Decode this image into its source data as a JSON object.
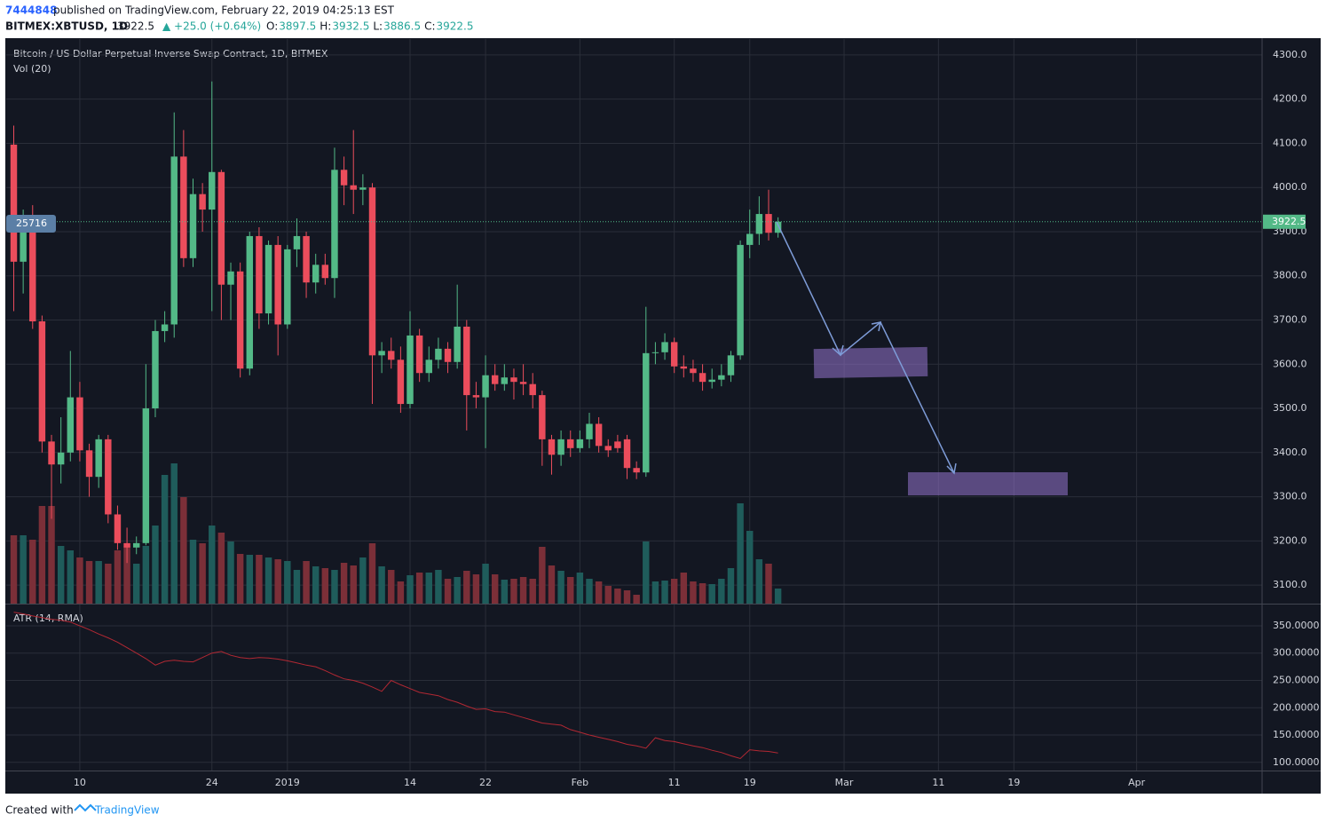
{
  "header": {
    "publisher": "7444848",
    "published": "published on TradingView.com, February 22, 2019 04:25:13 EST",
    "symbol": "BITMEX:XBTUSD, 1D",
    "last": "3922.5",
    "change": "▲ +25.0 (+0.64%)",
    "ohlc": [
      {
        "label": "O:",
        "value": "3897.5"
      },
      {
        "label": "H:",
        "value": "3932.5"
      },
      {
        "label": "L:",
        "value": "3886.5"
      },
      {
        "label": "C:",
        "value": "3922.5"
      }
    ]
  },
  "footer": {
    "created": "Created with",
    "brand": "TradingView"
  },
  "chart_data": [
    {
      "type": "candlestick",
      "title": "Bitcoin / US Dollar Perpetual Inverse Swap Contract, 1D, BITMEX",
      "volume_title": "Vol (20)",
      "volume_label": "25716",
      "last_price_label": "3922.5",
      "up_color": "#53b987",
      "down_color": "#eb4d5c",
      "volume_up_color": "#1f5c5b",
      "volume_down_color": "#7b2f38",
      "grid": true,
      "open": [
        4097,
        3832,
        3925,
        3697,
        3425,
        3373,
        3400,
        3525,
        3405,
        3345,
        3430,
        3260,
        3195,
        3185,
        3195,
        3500,
        3675,
        3690,
        4070,
        3840,
        3985,
        3950,
        4035,
        3780,
        3810,
        3590,
        3890,
        3715,
        3870,
        3690,
        3860,
        3890,
        3785,
        3825,
        3795,
        4040,
        4005,
        3995,
        4000,
        3620,
        3630,
        3610,
        3510,
        3665,
        3580,
        3610,
        3635,
        3605,
        3685,
        3530,
        3525,
        3575,
        3555,
        3570,
        3560,
        3555,
        3530,
        3430,
        3395,
        3430,
        3410,
        3430,
        3465,
        3415,
        3425,
        3430,
        3365,
        3355,
        3625,
        3627,
        3650,
        3595,
        3590,
        3580,
        3560,
        3565,
        3575,
        3620,
        3870,
        3895,
        3940,
        3897.5
      ],
      "high": [
        4140,
        3950,
        3960,
        3710,
        3440,
        3480,
        3630,
        3560,
        3420,
        3440,
        3440,
        3280,
        3230,
        3210,
        3600,
        3700,
        3720,
        4170,
        4130,
        4020,
        4010,
        4240,
        4040,
        3830,
        3830,
        3900,
        3910,
        3880,
        3890,
        3870,
        3930,
        3900,
        3850,
        3850,
        4090,
        4070,
        4130,
        4030,
        4010,
        3650,
        3660,
        3640,
        3720,
        3680,
        3640,
        3660,
        3650,
        3780,
        3700,
        3560,
        3620,
        3600,
        3600,
        3590,
        3600,
        3580,
        3540,
        3440,
        3450,
        3450,
        3450,
        3490,
        3480,
        3430,
        3440,
        3440,
        3380,
        3730,
        3650,
        3670,
        3660,
        3620,
        3610,
        3600,
        3590,
        3600,
        3630,
        3880,
        3950,
        3980,
        3995,
        3932.5
      ],
      "low": [
        3720,
        3760,
        3680,
        3400,
        3250,
        3330,
        3380,
        3380,
        3300,
        3320,
        3240,
        3180,
        3150,
        3170,
        3190,
        3480,
        3650,
        3660,
        3820,
        3820,
        3900,
        3720,
        3700,
        3700,
        3570,
        3575,
        3680,
        3690,
        3620,
        3680,
        3820,
        3750,
        3760,
        3780,
        3750,
        3960,
        3940,
        3960,
        3510,
        3580,
        3590,
        3490,
        3500,
        3560,
        3560,
        3590,
        3580,
        3590,
        3450,
        3500,
        3410,
        3540,
        3540,
        3520,
        3530,
        3500,
        3370,
        3350,
        3370,
        3390,
        3400,
        3410,
        3400,
        3390,
        3400,
        3340,
        3340,
        3345,
        3600,
        3610,
        3580,
        3570,
        3560,
        3540,
        3545,
        3550,
        3560,
        3610,
        3840,
        3870,
        3880,
        3886.5
      ],
      "close": [
        3832,
        3925,
        3697,
        3425,
        3373,
        3400,
        3525,
        3405,
        3345,
        3430,
        3260,
        3195,
        3185,
        3195,
        3500,
        3675,
        3690,
        4070,
        3840,
        3985,
        3950,
        4035,
        3780,
        3810,
        3590,
        3890,
        3715,
        3870,
        3690,
        3860,
        3890,
        3785,
        3825,
        3795,
        4040,
        4005,
        3995,
        4000,
        3620,
        3630,
        3610,
        3510,
        3665,
        3580,
        3610,
        3635,
        3605,
        3685,
        3530,
        3525,
        3575,
        3555,
        3570,
        3560,
        3555,
        3530,
        3430,
        3395,
        3430,
        3410,
        3430,
        3465,
        3415,
        3405,
        3410,
        3365,
        3355,
        3625,
        3627,
        3650,
        3595,
        3590,
        3580,
        3560,
        3565,
        3575,
        3620,
        3870,
        3895,
        3940,
        3897.5,
        3922.5
      ],
      "volume": [
        77,
        77,
        72,
        110,
        110,
        65,
        60,
        52,
        48,
        48,
        45,
        60,
        65,
        45,
        65,
        88,
        145,
        158,
        120,
        72,
        68,
        88,
        80,
        70,
        56,
        55,
        55,
        52,
        50,
        48,
        38,
        48,
        42,
        40,
        38,
        46,
        43,
        52,
        68,
        42,
        38,
        25,
        32,
        35,
        35,
        38,
        28,
        30,
        37,
        33,
        45,
        33,
        27,
        28,
        30,
        28,
        64,
        43,
        37,
        30,
        35,
        28,
        25,
        20,
        17,
        15,
        10,
        70,
        25,
        26,
        28,
        35,
        25,
        23,
        22,
        28,
        40,
        113,
        82,
        50,
        45,
        17
      ],
      "xlim": [
        -0.8,
        132.3
      ],
      "ylim": [
        3058,
        4336
      ],
      "yticks": [
        {
          "value": 3100,
          "label": "3100.0"
        },
        {
          "value": 3200,
          "label": "3200.0"
        },
        {
          "value": 3300,
          "label": "3300.0"
        },
        {
          "value": 3400,
          "label": "3400.0"
        },
        {
          "value": 3500,
          "label": "3500.0"
        },
        {
          "value": 3600,
          "label": "3600.0"
        },
        {
          "value": 3700,
          "label": "3700.0"
        },
        {
          "value": 3800,
          "label": "3800.0"
        },
        {
          "value": 3900,
          "label": "3900.0"
        },
        {
          "value": 4000,
          "label": "4000.0"
        },
        {
          "value": 4100,
          "label": "4100.0"
        },
        {
          "value": 4200,
          "label": "4200.0"
        },
        {
          "value": 4300,
          "label": "4300.0"
        }
      ]
    },
    {
      "type": "line",
      "title": "ATR (14, RMA)",
      "color": "#b22833",
      "grid": true,
      "values": [
        375,
        372,
        368,
        365,
        362,
        360,
        357,
        350,
        343,
        335,
        328,
        320,
        310,
        300,
        290,
        278,
        285,
        287,
        285,
        284,
        292,
        300,
        303,
        296,
        292,
        290,
        292,
        291,
        289,
        286,
        282,
        278,
        275,
        268,
        260,
        253,
        250,
        245,
        238,
        230,
        250,
        242,
        235,
        228,
        225,
        222,
        215,
        210,
        203,
        197,
        198,
        193,
        192,
        187,
        182,
        177,
        172,
        170,
        168,
        160,
        155,
        150,
        146,
        142,
        138,
        133,
        130,
        126,
        145,
        140,
        138,
        134,
        130,
        127,
        122,
        118,
        112,
        107,
        123,
        121,
        120,
        117
      ],
      "xlim": [
        -0.8,
        132.3
      ],
      "ylim": [
        85,
        389
      ],
      "yticks": [
        {
          "value": 100,
          "label": "100.0000"
        },
        {
          "value": 150,
          "label": "150.0000"
        },
        {
          "value": 200,
          "label": "200.0000"
        },
        {
          "value": 250,
          "label": "250.0000"
        },
        {
          "value": 300,
          "label": "300.0000"
        },
        {
          "value": 350,
          "label": "350.0000"
        }
      ],
      "xticks": [
        {
          "value": 7,
          "label": "10"
        },
        {
          "value": 21,
          "label": "24"
        },
        {
          "value": 29,
          "label": "2019"
        },
        {
          "value": 42,
          "label": "14"
        },
        {
          "value": 50,
          "label": "22"
        },
        {
          "value": 60,
          "label": "Feb"
        },
        {
          "value": 70,
          "label": "11"
        },
        {
          "value": 78,
          "label": "19"
        },
        {
          "value": 88,
          "label": "Mar"
        },
        {
          "value": 98,
          "label": "11"
        },
        {
          "value": 106,
          "label": "19"
        },
        {
          "value": 119,
          "label": "Apr"
        }
      ]
    }
  ]
}
